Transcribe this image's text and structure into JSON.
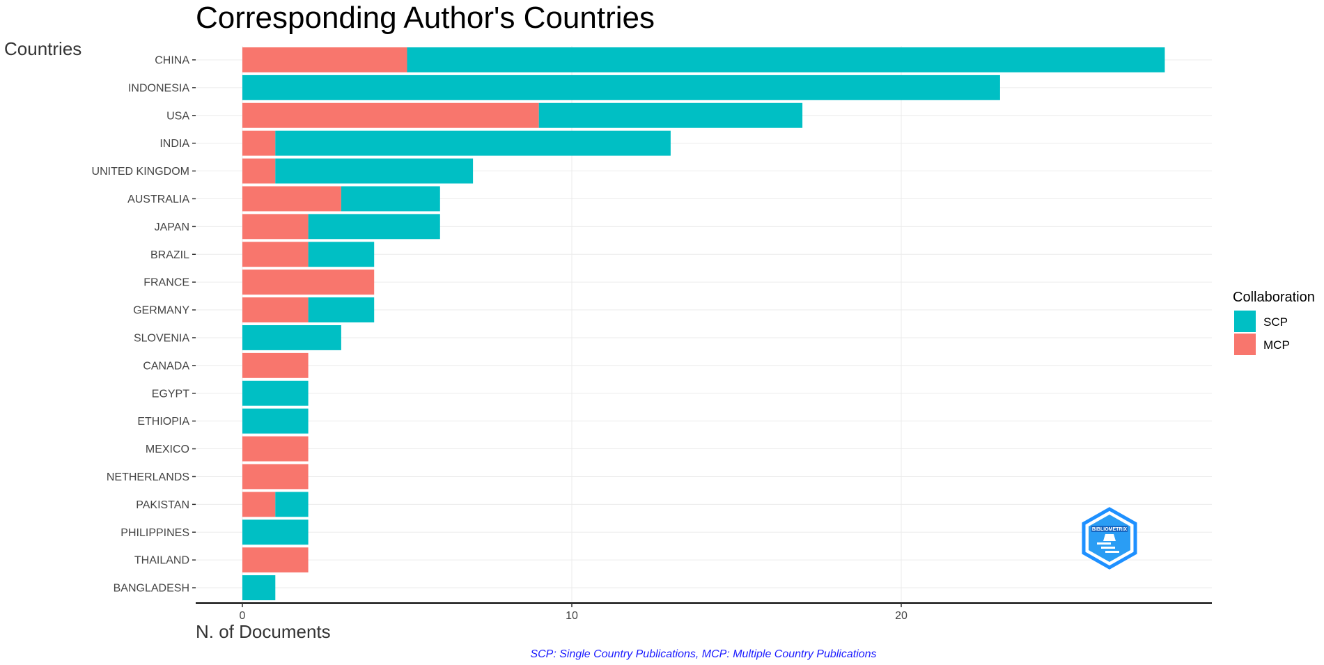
{
  "colors": {
    "SCP": "#00BFC4",
    "MCP": "#F8766D",
    "grid": "#ebebeb",
    "axis": "#000000",
    "caption": "#1a1aff",
    "logo": "#1e90ff"
  },
  "chart_data": {
    "type": "bar",
    "orientation": "horizontal",
    "stacked": true,
    "title": "Corresponding Author's Countries",
    "xlabel": "N. of Documents",
    "ylabel": "Countries",
    "xlim": [
      0,
      29
    ],
    "xticks": [
      0,
      10,
      20
    ],
    "grid": true,
    "legend": {
      "title": "Collaboration",
      "entries": [
        "SCP",
        "MCP"
      ],
      "position": "right"
    },
    "categories": [
      "CHINA",
      "INDONESIA",
      "USA",
      "INDIA",
      "UNITED KINGDOM",
      "AUSTRALIA",
      "JAPAN",
      "BRAZIL",
      "FRANCE",
      "GERMANY",
      "SLOVENIA",
      "CANADA",
      "EGYPT",
      "ETHIOPIA",
      "MEXICO",
      "NETHERLANDS",
      "PAKISTAN",
      "PHILIPPINES",
      "THAILAND",
      "BANGLADESH"
    ],
    "series": [
      {
        "name": "MCP",
        "values": [
          5,
          0,
          9,
          1,
          1,
          3,
          2,
          2,
          4,
          2,
          0,
          2,
          0,
          0,
          2,
          2,
          1,
          0,
          2,
          0
        ]
      },
      {
        "name": "SCP",
        "values": [
          23,
          23,
          8,
          12,
          6,
          3,
          4,
          2,
          0,
          2,
          3,
          0,
          2,
          2,
          0,
          0,
          1,
          2,
          0,
          1
        ]
      }
    ],
    "caption": "SCP: Single Country Publications, MCP: Multiple Country Publications"
  },
  "logo": {
    "name": "bibliometrix",
    "text": "BIBLIOMETRIX"
  }
}
